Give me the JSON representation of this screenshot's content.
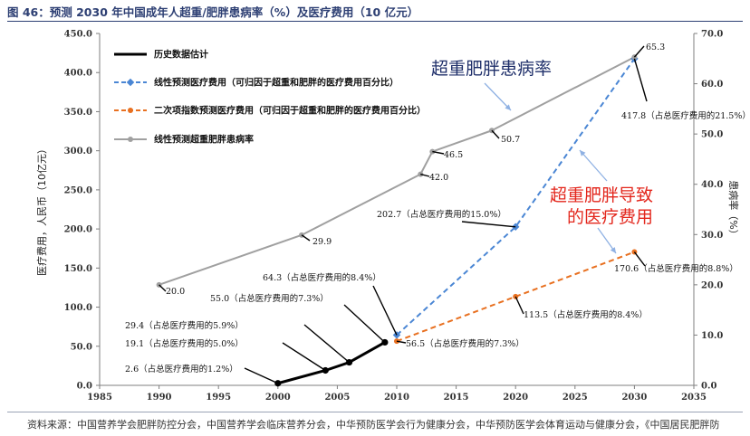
{
  "page": {
    "title": "图 46：预测 2030 年中国成年人超重/肥胖患病率（%）及医疗费用（10 亿元）",
    "source": "资料来源：中国营养学会肥胖防控分会，中国营养学会临床营养分会，中华预防医学会行为健康分会，中华预防医学会体育运动与健康分会，《中国居民肥胖防"
  },
  "chart_data": {
    "type": "line",
    "x_ticks": [
      1985,
      1990,
      1995,
      2000,
      2005,
      2010,
      2015,
      2020,
      2025,
      2030,
      2035
    ],
    "xlim": [
      1985,
      2035
    ],
    "y_left": {
      "label": "医疗费用，人民币（10亿元）",
      "lim": [
        0,
        450
      ],
      "ticks": [
        "0.0",
        "50.0",
        "100.0",
        "150.0",
        "200.0",
        "250.0",
        "300.0",
        "350.0",
        "400.0",
        "450.0"
      ]
    },
    "y_right": {
      "label": "患病率（%）",
      "lim": [
        0,
        70
      ],
      "ticks": [
        "0.0",
        "10.0",
        "20.0",
        "30.0",
        "40.0",
        "50.0",
        "60.0",
        "70.0"
      ]
    },
    "legend": [
      "历史数据估计",
      "线性预测医疗费用（可归因于超重和肥胖的医疗费用百分比）",
      "二次项指数预测医疗费用（可归因于超重和肥胖的医疗费用百分比）",
      "线性预测超重肥胖患病率"
    ],
    "series": [
      {
        "name": "历史数据估计",
        "axis": "left",
        "color": "#000000",
        "style": "solid",
        "marker": "circle",
        "points": [
          [
            2000,
            2.6
          ],
          [
            2004,
            19.1
          ],
          [
            2006,
            29.4
          ],
          [
            2009,
            55.0
          ]
        ],
        "labels": [
          "2.6（占总医疗费用的1.2%）",
          "19.1（占总医疗费用的5.0%）",
          "29.4（占总医疗费用的5.9%）",
          "55.0（占总医疗费用的7.3%）"
        ]
      },
      {
        "name": "线性预测医疗费用（可归因于超重和肥胖的医疗费用百分比）",
        "axis": "left",
        "color": "#4a86d4",
        "style": "dashed",
        "marker": "diamond",
        "points": [
          [
            2010,
            64.3
          ],
          [
            2020,
            202.7
          ],
          [
            2030,
            417.8
          ]
        ],
        "labels": [
          "64.3（占总医疗费用的8.4%）",
          "202.7（占总医疗费用的15.0%）",
          "417.8（占总医疗费用的21.5%）"
        ]
      },
      {
        "name": "二次项指数预测医疗费用（可归因于超重和肥胖的医疗费用百分比）",
        "axis": "left",
        "color": "#e87020",
        "style": "dashed",
        "marker": "circle",
        "points": [
          [
            2010,
            56.5
          ],
          [
            2020,
            113.5
          ],
          [
            2030,
            170.6
          ]
        ],
        "labels": [
          "56.5（占总医疗费用的7.3%）",
          "113.5（占总医疗费用的8.4%）",
          "170.6（占总医疗费用的8.8%）"
        ]
      },
      {
        "name": "线性预测超重肥胖患病率",
        "axis": "right",
        "color": "#a0a0a0",
        "style": "solid",
        "marker": "circle",
        "points": [
          [
            1990,
            20.0
          ],
          [
            2002,
            29.9
          ],
          [
            2012,
            42.0
          ],
          [
            2013,
            46.5
          ],
          [
            2018,
            50.7
          ],
          [
            2030,
            65.3
          ]
        ],
        "labels": [
          "20.0",
          "29.9",
          "42.0",
          "46.5",
          "50.7",
          "65.3"
        ]
      }
    ],
    "annotations": [
      "超重肥胖患病率",
      "超重肥胖导致",
      "的医疗费用"
    ]
  }
}
